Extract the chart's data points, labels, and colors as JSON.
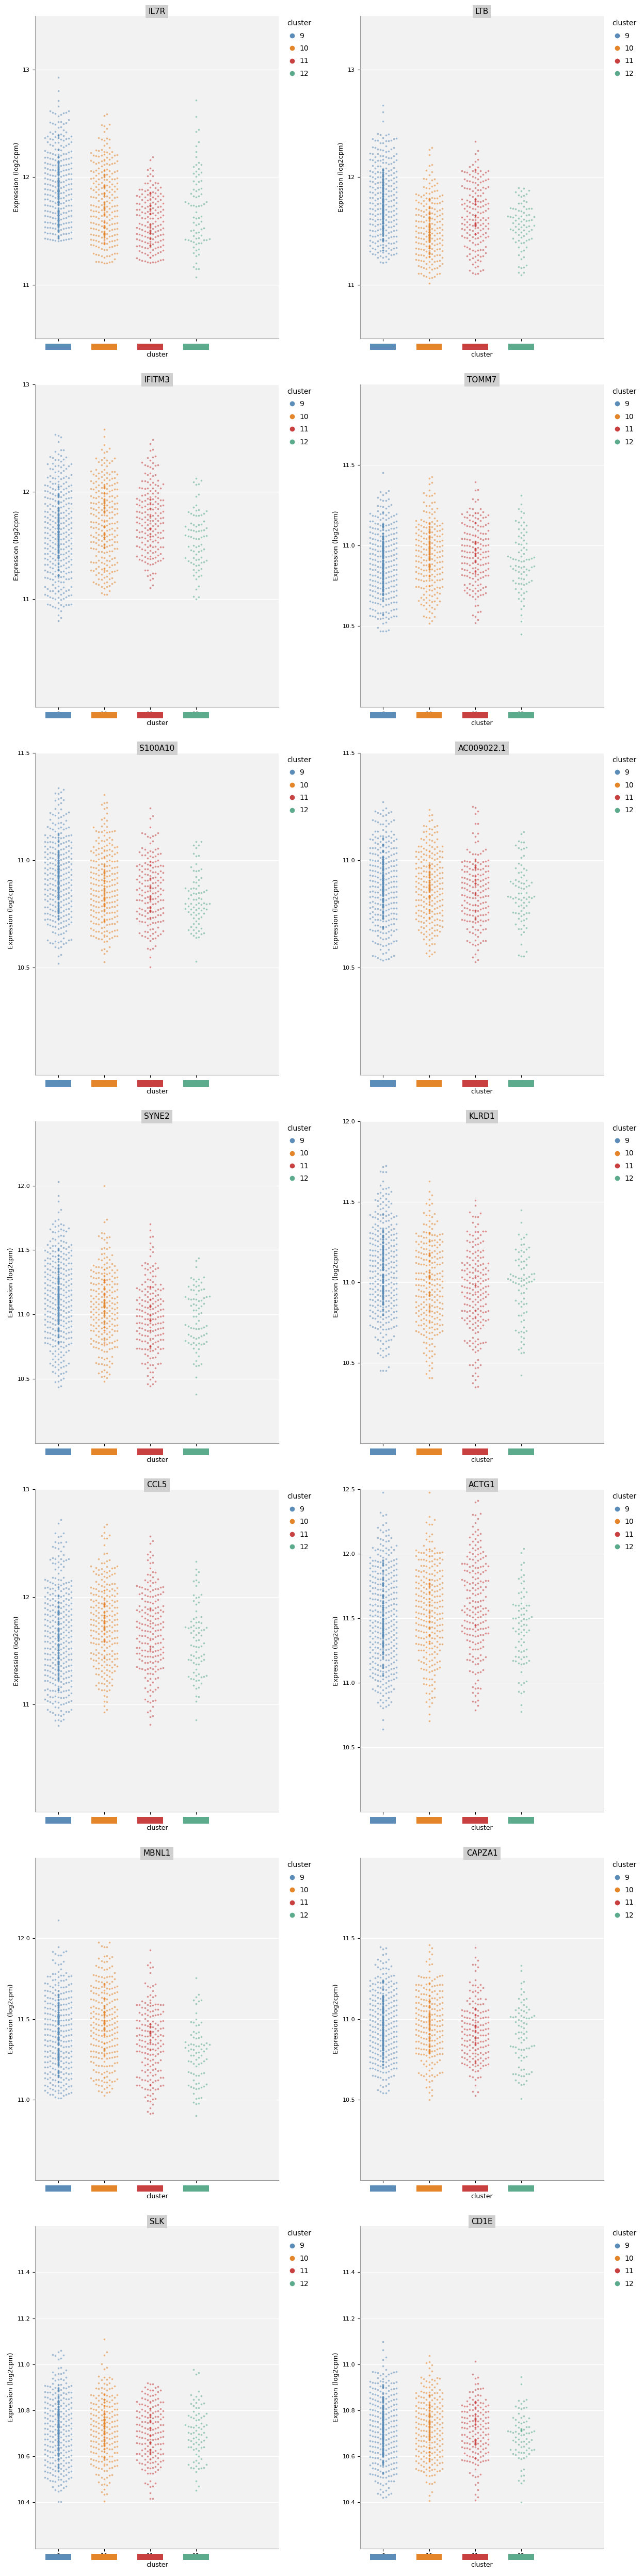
{
  "gene_labels": [
    "IL7R",
    "LTB",
    "IFITM3",
    "TOMM7",
    "S100A10",
    "AC009022.1",
    "SYNE2",
    "KLRD1",
    "CCL5",
    "ACTG1",
    "MBNL1",
    "CAPZA1",
    "SLK",
    "CD1E"
  ],
  "clusters": [
    9,
    10,
    11,
    12
  ],
  "cluster_colors": {
    "9": "#5B8DB8",
    "10": "#E5852A",
    "11": "#C94040",
    "12": "#5BAB8C"
  },
  "ylims": {
    "IL7R": [
      10.5,
      13.5
    ],
    "LTB": [
      10.5,
      13.5
    ],
    "IFITM3": [
      10.0,
      13.0
    ],
    "TOMM7": [
      10.0,
      12.0
    ],
    "S100A10": [
      10.0,
      11.5
    ],
    "AC009022.1": [
      10.0,
      11.5
    ],
    "SYNE2": [
      10.0,
      12.5
    ],
    "KLRD1": [
      10.0,
      12.0
    ],
    "CCL5": [
      10.0,
      13.0
    ],
    "ACTG1": [
      10.0,
      12.5
    ],
    "MBNL1": [
      10.5,
      12.5
    ],
    "CAPZA1": [
      10.0,
      12.0
    ],
    "SLK": [
      10.2,
      11.6
    ],
    "CD1E": [
      10.2,
      11.6
    ]
  },
  "yticks": {
    "IL7R": [
      11,
      12,
      13
    ],
    "LTB": [
      11,
      12,
      13
    ],
    "IFITM3": [
      11,
      12,
      13
    ],
    "TOMM7": [
      10.5,
      11.0,
      11.5
    ],
    "S100A10": [
      10.5,
      11.0,
      11.5
    ],
    "AC009022.1": [
      10.5,
      11.0,
      11.5
    ],
    "SYNE2": [
      10.5,
      11.0,
      11.5,
      12.0
    ],
    "KLRD1": [
      10.5,
      11.0,
      11.5,
      12.0
    ],
    "CCL5": [
      11,
      12,
      13
    ],
    "ACTG1": [
      10.5,
      11.0,
      11.5,
      12.0,
      12.5
    ],
    "MBNL1": [
      11.0,
      11.5,
      12.0
    ],
    "CAPZA1": [
      10.5,
      11.0,
      11.5
    ],
    "SLK": [
      10.4,
      10.6,
      10.8,
      11.0,
      11.2,
      11.4
    ],
    "CD1E": [
      10.4,
      10.6,
      10.8,
      11.0,
      11.2,
      11.4
    ]
  },
  "distributions": {
    "IL7R": {
      "9": {
        "mean": 11.85,
        "std": 0.35,
        "n": 500,
        "min": 11.4,
        "max": 13.1
      },
      "10": {
        "mean": 11.65,
        "std": 0.35,
        "n": 300,
        "min": 11.2,
        "max": 12.65
      },
      "11": {
        "mean": 11.55,
        "std": 0.25,
        "n": 200,
        "min": 11.2,
        "max": 12.4
      },
      "12": {
        "mean": 11.7,
        "std": 0.4,
        "n": 80,
        "min": 11.0,
        "max": 13.0
      }
    },
    "LTB": {
      "9": {
        "mean": 11.75,
        "std": 0.3,
        "n": 500,
        "min": 11.2,
        "max": 13.3
      },
      "10": {
        "mean": 11.5,
        "std": 0.25,
        "n": 300,
        "min": 11.0,
        "max": 12.45
      },
      "11": {
        "mean": 11.65,
        "std": 0.3,
        "n": 200,
        "min": 11.1,
        "max": 12.5
      },
      "12": {
        "mean": 11.55,
        "std": 0.2,
        "n": 80,
        "min": 11.0,
        "max": 11.9
      }
    },
    "IFITM3": {
      "9": {
        "mean": 11.6,
        "std": 0.35,
        "n": 500,
        "min": 10.8,
        "max": 12.8
      },
      "10": {
        "mean": 11.7,
        "std": 0.35,
        "n": 300,
        "min": 11.0,
        "max": 12.8
      },
      "11": {
        "mean": 11.75,
        "std": 0.3,
        "n": 200,
        "min": 11.1,
        "max": 12.8
      },
      "12": {
        "mean": 11.55,
        "std": 0.3,
        "n": 80,
        "min": 11.0,
        "max": 12.4
      }
    },
    "TOMM7": {
      "9": {
        "mean": 10.9,
        "std": 0.18,
        "n": 500,
        "min": 10.4,
        "max": 11.55
      },
      "10": {
        "mean": 10.95,
        "std": 0.18,
        "n": 300,
        "min": 10.5,
        "max": 11.55
      },
      "11": {
        "mean": 10.95,
        "std": 0.18,
        "n": 200,
        "min": 10.5,
        "max": 11.55
      },
      "12": {
        "mean": 10.9,
        "std": 0.18,
        "n": 80,
        "min": 10.4,
        "max": 11.4
      }
    },
    "S100A10": {
      "9": {
        "mean": 10.9,
        "std": 0.15,
        "n": 500,
        "min": 10.5,
        "max": 11.45
      },
      "10": {
        "mean": 10.88,
        "std": 0.15,
        "n": 300,
        "min": 10.5,
        "max": 11.4
      },
      "11": {
        "mean": 10.85,
        "std": 0.14,
        "n": 200,
        "min": 10.5,
        "max": 11.35
      },
      "12": {
        "mean": 10.82,
        "std": 0.14,
        "n": 80,
        "min": 10.4,
        "max": 11.3
      }
    },
    "AC009022.1": {
      "9": {
        "mean": 10.88,
        "std": 0.15,
        "n": 500,
        "min": 10.5,
        "max": 11.45
      },
      "10": {
        "mean": 10.87,
        "std": 0.15,
        "n": 300,
        "min": 10.5,
        "max": 11.4
      },
      "11": {
        "mean": 10.85,
        "std": 0.14,
        "n": 200,
        "min": 10.5,
        "max": 11.35
      },
      "12": {
        "mean": 10.83,
        "std": 0.14,
        "n": 80,
        "min": 10.4,
        "max": 11.3
      }
    },
    "SYNE2": {
      "9": {
        "mean": 11.1,
        "std": 0.28,
        "n": 500,
        "min": 10.4,
        "max": 12.35
      },
      "10": {
        "mean": 11.05,
        "std": 0.27,
        "n": 300,
        "min": 10.4,
        "max": 12.2
      },
      "11": {
        "mean": 11.0,
        "std": 0.26,
        "n": 200,
        "min": 10.4,
        "max": 12.1
      },
      "12": {
        "mean": 10.95,
        "std": 0.25,
        "n": 80,
        "min": 10.3,
        "max": 12.0
      }
    },
    "KLRD1": {
      "9": {
        "mean": 11.05,
        "std": 0.25,
        "n": 500,
        "min": 10.4,
        "max": 12.1
      },
      "10": {
        "mean": 11.0,
        "std": 0.24,
        "n": 300,
        "min": 10.4,
        "max": 11.9
      },
      "11": {
        "mean": 10.95,
        "std": 0.24,
        "n": 200,
        "min": 10.3,
        "max": 11.9
      },
      "12": {
        "mean": 10.92,
        "std": 0.23,
        "n": 80,
        "min": 10.3,
        "max": 11.8
      }
    },
    "CCL5": {
      "9": {
        "mean": 11.6,
        "std": 0.4,
        "n": 500,
        "min": 10.8,
        "max": 13.0
      },
      "10": {
        "mean": 11.7,
        "std": 0.38,
        "n": 300,
        "min": 10.9,
        "max": 13.0
      },
      "11": {
        "mean": 11.65,
        "std": 0.38,
        "n": 200,
        "min": 10.8,
        "max": 13.0
      },
      "12": {
        "mean": 11.55,
        "std": 0.35,
        "n": 80,
        "min": 10.6,
        "max": 12.8
      }
    },
    "ACTG1": {
      "9": {
        "mean": 11.5,
        "std": 0.35,
        "n": 500,
        "min": 10.6,
        "max": 12.5
      },
      "10": {
        "mean": 11.55,
        "std": 0.35,
        "n": 300,
        "min": 10.7,
        "max": 12.5
      },
      "11": {
        "mean": 11.6,
        "std": 0.35,
        "n": 200,
        "min": 10.7,
        "max": 12.5
      },
      "12": {
        "mean": 11.45,
        "std": 0.33,
        "n": 80,
        "min": 10.5,
        "max": 12.3
      }
    },
    "MBNL1": {
      "9": {
        "mean": 11.4,
        "std": 0.22,
        "n": 500,
        "min": 11.0,
        "max": 12.2
      },
      "10": {
        "mean": 11.45,
        "std": 0.23,
        "n": 300,
        "min": 11.0,
        "max": 12.2
      },
      "11": {
        "mean": 11.35,
        "std": 0.21,
        "n": 200,
        "min": 10.9,
        "max": 12.1
      },
      "12": {
        "mean": 11.3,
        "std": 0.2,
        "n": 80,
        "min": 10.9,
        "max": 12.0
      }
    },
    "CAPZA1": {
      "9": {
        "mean": 10.95,
        "std": 0.18,
        "n": 500,
        "min": 10.5,
        "max": 11.55
      },
      "10": {
        "mean": 10.97,
        "std": 0.18,
        "n": 300,
        "min": 10.5,
        "max": 11.55
      },
      "11": {
        "mean": 10.93,
        "std": 0.17,
        "n": 200,
        "min": 10.5,
        "max": 11.5
      },
      "12": {
        "mean": 10.9,
        "std": 0.17,
        "n": 80,
        "min": 10.4,
        "max": 11.45
      }
    },
    "SLK": {
      "9": {
        "mean": 10.72,
        "std": 0.12,
        "n": 500,
        "min": 10.4,
        "max": 11.15
      },
      "10": {
        "mean": 10.73,
        "std": 0.12,
        "n": 300,
        "min": 10.4,
        "max": 11.15
      },
      "11": {
        "mean": 10.71,
        "std": 0.11,
        "n": 200,
        "min": 10.4,
        "max": 11.1
      },
      "12": {
        "mean": 10.7,
        "std": 0.11,
        "n": 80,
        "min": 10.3,
        "max": 11.05
      }
    },
    "CD1E": {
      "9": {
        "mean": 10.72,
        "std": 0.12,
        "n": 500,
        "min": 10.4,
        "max": 11.15
      },
      "10": {
        "mean": 10.73,
        "std": 0.12,
        "n": 300,
        "min": 10.4,
        "max": 11.15
      },
      "11": {
        "mean": 10.71,
        "std": 0.11,
        "n": 200,
        "min": 10.4,
        "max": 11.1
      },
      "12": {
        "mean": 10.7,
        "std": 0.11,
        "n": 80,
        "min": 10.3,
        "max": 11.05
      }
    }
  },
  "background_color": "#FFFFFF",
  "panel_bg": "#F2F2F2",
  "ylabel": "Expression (log2cpm)",
  "xlabel": "cluster",
  "legend_title": "cluster",
  "title_fontsize": 11,
  "axis_fontsize": 9,
  "tick_fontsize": 8
}
